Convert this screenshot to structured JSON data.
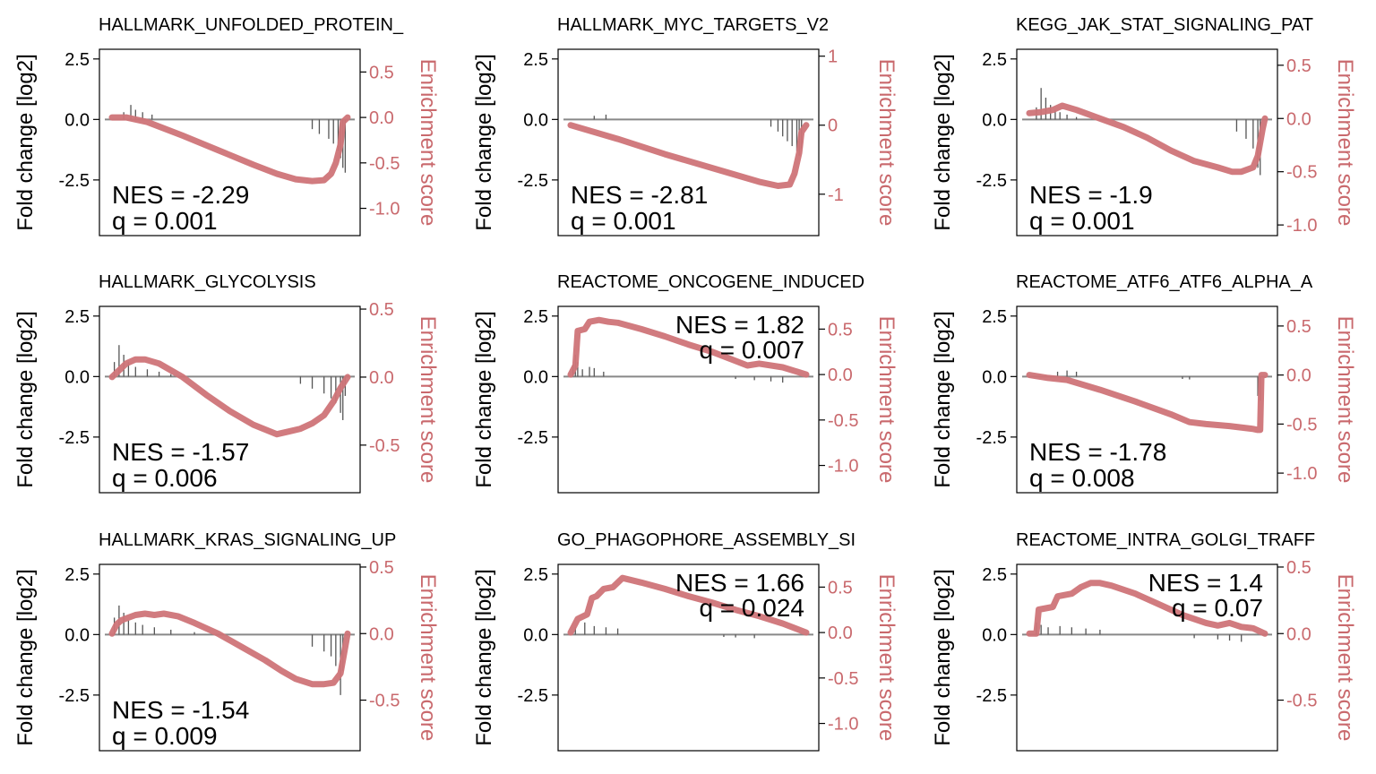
{
  "figure": {
    "left_axis_label": "Fold change [log2]",
    "right_axis_label": "Enrichment score",
    "colors": {
      "es_line": "#cf7478",
      "right_axis_text": "#c9696d",
      "hits": "#555555",
      "zero_line": "#888888",
      "frame": "#000000"
    }
  },
  "chart_data": [
    {
      "type": "line",
      "title": "HALLMARK_UNFOLDED_PROTEIN_",
      "left_axis": {
        "label": "Fold change [log2]",
        "ticks": [
          2.5,
          0.0,
          -2.5
        ],
        "tick_labels": [
          "2.5",
          "0.0",
          "-2.5"
        ]
      },
      "right_axis": {
        "label": "Enrichment score",
        "ylim": [
          -1.3,
          0.75
        ],
        "ticks": [
          0.5,
          0.0,
          -0.5,
          -1.0
        ],
        "tick_labels": [
          "0.5",
          "0.0",
          "-0.5",
          "-1.0"
        ]
      },
      "annotation": {
        "nes": "NES = -2.29",
        "q": "q = 0.001",
        "position": "bottom-left"
      },
      "x": [
        0,
        0.06,
        0.15,
        0.3,
        0.45,
        0.6,
        0.7,
        0.78,
        0.85,
        0.9,
        0.93,
        0.95,
        0.97,
        0.98,
        1.0
      ],
      "es": [
        0.0,
        0.0,
        -0.05,
        -0.2,
        -0.36,
        -0.52,
        -0.62,
        -0.68,
        -0.7,
        -0.69,
        -0.62,
        -0.5,
        -0.3,
        -0.05,
        0.0
      ],
      "hits": [
        [
          0.05,
          0.3
        ],
        [
          0.08,
          0.6
        ],
        [
          0.1,
          0.4
        ],
        [
          0.13,
          0.3
        ],
        [
          0.17,
          0.2
        ],
        [
          0.85,
          -0.4
        ],
        [
          0.88,
          -0.6
        ],
        [
          0.92,
          -0.8
        ],
        [
          0.94,
          -1.0
        ],
        [
          0.96,
          -1.3
        ],
        [
          0.97,
          -1.6
        ],
        [
          0.98,
          -2.0
        ],
        [
          0.99,
          -2.2
        ]
      ]
    },
    {
      "type": "line",
      "title": "HALLMARK_MYC_TARGETS_V2",
      "left_axis": {
        "label": "Fold change [log2]",
        "ticks": [
          2.5,
          0.0,
          -2.5
        ],
        "tick_labels": [
          "2.5",
          "0.0",
          "-2.5"
        ]
      },
      "right_axis": {
        "label": "Enrichment score",
        "ylim": [
          -1.6,
          1.1
        ],
        "ticks": [
          1,
          0,
          -1
        ],
        "tick_labels": [
          "1",
          "0",
          "-1"
        ]
      },
      "annotation": {
        "nes": "NES = -2.81",
        "q": "q = 0.001",
        "position": "bottom-left"
      },
      "x": [
        0,
        0.2,
        0.4,
        0.6,
        0.8,
        0.88,
        0.93,
        0.95,
        0.97,
        0.98,
        1.0
      ],
      "es": [
        0.0,
        -0.2,
        -0.42,
        -0.62,
        -0.82,
        -0.88,
        -0.86,
        -0.7,
        -0.4,
        -0.1,
        0.0
      ],
      "hits": [
        [
          0.1,
          0.15
        ],
        [
          0.15,
          0.2
        ],
        [
          0.85,
          -0.3
        ],
        [
          0.88,
          -0.5
        ],
        [
          0.9,
          -0.7
        ],
        [
          0.92,
          -0.9
        ],
        [
          0.94,
          -1.1
        ],
        [
          0.96,
          -1.3
        ],
        [
          0.97,
          -1.5
        ],
        [
          0.98,
          -1.2
        ]
      ]
    },
    {
      "type": "line",
      "title": "KEGG_JAK_STAT_SIGNALING_PAT",
      "left_axis": {
        "label": "Fold change [log2]",
        "ticks": [
          2.5,
          0.0,
          -2.5
        ],
        "tick_labels": [
          "2.5",
          "0.0",
          "-2.5"
        ]
      },
      "right_axis": {
        "label": "Enrichment score",
        "ylim": [
          -1.1,
          0.65
        ],
        "ticks": [
          0.5,
          0.0,
          -0.5,
          -1.0
        ],
        "tick_labels": [
          "0.5",
          "0.0",
          "-0.5",
          "-1.0"
        ]
      },
      "annotation": {
        "nes": "NES = -1.9",
        "q": "q = 0.001",
        "position": "bottom-left"
      },
      "x": [
        0,
        0.05,
        0.1,
        0.14,
        0.2,
        0.3,
        0.4,
        0.5,
        0.6,
        0.7,
        0.8,
        0.86,
        0.9,
        0.95,
        0.97,
        0.99,
        1.0
      ],
      "es": [
        0.05,
        0.06,
        0.08,
        0.12,
        0.08,
        0.0,
        -0.08,
        -0.18,
        -0.3,
        -0.4,
        -0.46,
        -0.5,
        -0.5,
        -0.46,
        -0.35,
        -0.1,
        0.0
      ],
      "hits": [
        [
          0.03,
          0.5
        ],
        [
          0.05,
          1.3
        ],
        [
          0.07,
          0.9
        ],
        [
          0.09,
          0.6
        ],
        [
          0.11,
          0.4
        ],
        [
          0.13,
          0.3
        ],
        [
          0.16,
          0.2
        ],
        [
          0.2,
          0.1
        ],
        [
          0.88,
          -0.5
        ],
        [
          0.92,
          -0.8
        ],
        [
          0.95,
          -1.2
        ],
        [
          0.97,
          -2.0
        ],
        [
          0.98,
          -2.3
        ]
      ]
    },
    {
      "type": "line",
      "title": "HALLMARK_GLYCOLYSIS",
      "left_axis": {
        "label": "Fold change [log2]",
        "ticks": [
          2.5,
          0.0,
          -2.5
        ],
        "tick_labels": [
          "2.5",
          "0.0",
          "-2.5"
        ]
      },
      "right_axis": {
        "label": "Enrichment score",
        "ylim": [
          -0.85,
          0.52
        ],
        "ticks": [
          0.5,
          0.0,
          -0.5
        ],
        "tick_labels": [
          "0.5",
          "0.0",
          "-0.5"
        ]
      },
      "annotation": {
        "nes": "NES = -1.57",
        "q": "q = 0.006",
        "position": "bottom-left"
      },
      "x": [
        0,
        0.03,
        0.06,
        0.1,
        0.14,
        0.2,
        0.3,
        0.4,
        0.5,
        0.6,
        0.7,
        0.75,
        0.8,
        0.85,
        0.9,
        0.94,
        0.97,
        1.0
      ],
      "es": [
        0.0,
        0.05,
        0.1,
        0.13,
        0.13,
        0.1,
        0.0,
        -0.13,
        -0.25,
        -0.35,
        -0.42,
        -0.4,
        -0.38,
        -0.34,
        -0.28,
        -0.18,
        -0.08,
        0.0
      ],
      "hits": [
        [
          0.01,
          0.6
        ],
        [
          0.03,
          1.3
        ],
        [
          0.05,
          0.9
        ],
        [
          0.07,
          0.6
        ],
        [
          0.1,
          0.4
        ],
        [
          0.15,
          0.3
        ],
        [
          0.2,
          0.2
        ],
        [
          0.25,
          0.1
        ],
        [
          0.8,
          -0.3
        ],
        [
          0.85,
          -0.5
        ],
        [
          0.9,
          -0.7
        ],
        [
          0.93,
          -0.9
        ],
        [
          0.95,
          -1.1
        ],
        [
          0.97,
          -1.5
        ],
        [
          0.98,
          -1.8
        ],
        [
          0.99,
          -0.8
        ]
      ]
    },
    {
      "type": "line",
      "title": "REACTOME_ONCOGENE_INDUCED",
      "left_axis": {
        "label": "Fold change [log2]",
        "ticks": [
          2.5,
          0.0,
          -2.5
        ],
        "tick_labels": [
          "2.5",
          "0.0",
          "-2.5"
        ]
      },
      "right_axis": {
        "label": "Enrichment score",
        "ylim": [
          -1.3,
          0.75
        ],
        "ticks": [
          0.5,
          0.0,
          -0.5,
          -1.0
        ],
        "tick_labels": [
          "0.5",
          "0.0",
          "-0.5",
          "-1.0"
        ]
      },
      "annotation": {
        "nes": "NES = 1.82",
        "q": "q = 0.007",
        "position": "top-right"
      },
      "x": [
        0,
        0.02,
        0.03,
        0.06,
        0.08,
        0.12,
        0.16,
        0.2,
        0.3,
        0.4,
        0.5,
        0.6,
        0.7,
        0.75,
        0.8,
        0.9,
        1.0
      ],
      "es": [
        0.0,
        0.1,
        0.48,
        0.5,
        0.58,
        0.6,
        0.58,
        0.57,
        0.5,
        0.42,
        0.33,
        0.25,
        0.15,
        0.1,
        0.12,
        0.08,
        0.0
      ],
      "hits": [
        [
          0.01,
          0.5
        ],
        [
          0.02,
          0.9
        ],
        [
          0.03,
          0.6
        ],
        [
          0.05,
          0.3
        ],
        [
          0.08,
          0.4
        ],
        [
          0.1,
          0.35
        ],
        [
          0.14,
          0.2
        ],
        [
          0.7,
          -0.1
        ],
        [
          0.78,
          -0.15
        ],
        [
          0.85,
          -0.2
        ],
        [
          0.9,
          -0.25
        ]
      ]
    },
    {
      "type": "line",
      "title": "REACTOME_ATF6_ATF6_ALPHA_A",
      "left_axis": {
        "label": "Fold change [log2]",
        "ticks": [
          2.5,
          0.0,
          -2.5
        ],
        "tick_labels": [
          "2.5",
          "0.0",
          "-2.5"
        ]
      },
      "right_axis": {
        "label": "Enrichment score",
        "ylim": [
          -1.2,
          0.7
        ],
        "ticks": [
          0.5,
          0.0,
          -0.5,
          -1.0
        ],
        "tick_labels": [
          "0.5",
          "0.0",
          "-0.5",
          "-1.0"
        ]
      },
      "annotation": {
        "nes": "NES = -1.78",
        "q": "q = 0.008",
        "position": "bottom-left"
      },
      "x": [
        0,
        0.08,
        0.16,
        0.3,
        0.45,
        0.6,
        0.68,
        0.75,
        0.85,
        0.95,
        0.97,
        0.98,
        0.985,
        1.0
      ],
      "es": [
        0.0,
        -0.03,
        -0.05,
        -0.15,
        -0.27,
        -0.4,
        -0.48,
        -0.5,
        -0.52,
        -0.55,
        -0.56,
        -0.56,
        0.0,
        0.0
      ],
      "hits": [
        [
          0.12,
          0.2
        ],
        [
          0.16,
          0.25
        ],
        [
          0.2,
          0.2
        ],
        [
          0.65,
          -0.1
        ],
        [
          0.68,
          -0.12
        ],
        [
          0.97,
          -0.8
        ],
        [
          0.98,
          -1.0
        ]
      ]
    },
    {
      "type": "line",
      "title": "HALLMARK_KRAS_SIGNALING_UP",
      "left_axis": {
        "label": "Fold change [log2]",
        "ticks": [
          2.5,
          0.0,
          -2.5
        ],
        "tick_labels": [
          "2.5",
          "0.0",
          "-2.5"
        ]
      },
      "right_axis": {
        "label": "Enrichment score",
        "ylim": [
          -0.88,
          0.52
        ],
        "ticks": [
          0.5,
          0.0,
          -0.5
        ],
        "tick_labels": [
          "0.5",
          "0.0",
          "-0.5"
        ]
      },
      "annotation": {
        "nes": "NES = -1.54",
        "q": "q = 0.009",
        "position": "bottom-left"
      },
      "x": [
        0,
        0.02,
        0.04,
        0.07,
        0.1,
        0.14,
        0.18,
        0.22,
        0.28,
        0.35,
        0.45,
        0.55,
        0.65,
        0.72,
        0.78,
        0.85,
        0.9,
        0.94,
        0.97,
        0.99,
        1.0
      ],
      "es": [
        0.0,
        0.07,
        0.1,
        0.12,
        0.14,
        0.15,
        0.14,
        0.15,
        0.13,
        0.08,
        0.0,
        -0.1,
        -0.2,
        -0.28,
        -0.34,
        -0.38,
        -0.38,
        -0.37,
        -0.3,
        -0.1,
        0.0
      ],
      "hits": [
        [
          0.01,
          0.7
        ],
        [
          0.03,
          1.2
        ],
        [
          0.05,
          0.9
        ],
        [
          0.07,
          0.6
        ],
        [
          0.1,
          0.5
        ],
        [
          0.13,
          0.4
        ],
        [
          0.18,
          0.3
        ],
        [
          0.25,
          0.2
        ],
        [
          0.35,
          0.1
        ],
        [
          0.85,
          -0.5
        ],
        [
          0.9,
          -0.7
        ],
        [
          0.93,
          -0.9
        ],
        [
          0.95,
          -1.3
        ],
        [
          0.97,
          -2.5
        ],
        [
          0.98,
          -1.5
        ]
      ]
    },
    {
      "type": "line",
      "title": "GO_PHAGOPHORE_ASSEMBLY_SI",
      "left_axis": {
        "label": "Fold change [log2]",
        "ticks": [
          2.5,
          0.0,
          -2.5
        ],
        "tick_labels": [
          "2.5",
          "0.0",
          "-2.5"
        ]
      },
      "right_axis": {
        "label": "Enrichment score",
        "ylim": [
          -1.3,
          0.75
        ],
        "ticks": [
          0.5,
          0.0,
          -0.5,
          -1.0
        ],
        "tick_labels": [
          "0.5",
          "0.0",
          "-0.5",
          "-1.0"
        ]
      },
      "annotation": {
        "nes": "NES = 1.66",
        "q": "q = 0.024",
        "position": "top-right"
      },
      "x": [
        0,
        0.03,
        0.07,
        0.09,
        0.11,
        0.14,
        0.18,
        0.22,
        0.3,
        0.4,
        0.5,
        0.6,
        0.7,
        0.8,
        0.9,
        1.0
      ],
      "es": [
        0.0,
        0.15,
        0.2,
        0.38,
        0.4,
        0.48,
        0.5,
        0.6,
        0.55,
        0.48,
        0.4,
        0.33,
        0.25,
        0.18,
        0.1,
        0.0
      ],
      "hits": [
        [
          0.02,
          0.3
        ],
        [
          0.06,
          0.5
        ],
        [
          0.1,
          0.35
        ],
        [
          0.15,
          0.3
        ],
        [
          0.2,
          0.25
        ],
        [
          0.65,
          -0.1
        ],
        [
          0.7,
          -0.12
        ],
        [
          0.78,
          -0.15
        ]
      ]
    },
    {
      "type": "line",
      "title": "REACTOME_INTRA_GOLGI_TRAFF",
      "left_axis": {
        "label": "Fold change [log2]",
        "ticks": [
          2.5,
          0.0,
          -2.5
        ],
        "tick_labels": [
          "2.5",
          "0.0",
          "-2.5"
        ]
      },
      "right_axis": {
        "label": "Enrichment score",
        "ylim": [
          -0.88,
          0.52
        ],
        "ticks": [
          0.5,
          0.0,
          -0.5
        ],
        "tick_labels": [
          "0.5",
          "0.0",
          "-0.5"
        ]
      },
      "annotation": {
        "nes": "NES = 1.4",
        "q": "q = 0.07",
        "position": "top-right"
      },
      "x": [
        0,
        0.03,
        0.04,
        0.1,
        0.12,
        0.18,
        0.22,
        0.26,
        0.3,
        0.35,
        0.45,
        0.55,
        0.65,
        0.75,
        0.8,
        0.85,
        0.9,
        0.95,
        1.0
      ],
      "es": [
        0.0,
        0.0,
        0.18,
        0.2,
        0.28,
        0.3,
        0.35,
        0.38,
        0.38,
        0.36,
        0.3,
        0.22,
        0.14,
        0.08,
        0.06,
        0.08,
        0.05,
        0.04,
        0.0
      ],
      "hits": [
        [
          0.03,
          0.5
        ],
        [
          0.05,
          0.4
        ],
        [
          0.08,
          0.3
        ],
        [
          0.13,
          0.35
        ],
        [
          0.18,
          0.3
        ],
        [
          0.24,
          0.25
        ],
        [
          0.3,
          0.2
        ],
        [
          0.7,
          -0.15
        ],
        [
          0.8,
          -0.2
        ],
        [
          0.85,
          -0.25
        ],
        [
          0.9,
          -0.3
        ]
      ]
    }
  ]
}
